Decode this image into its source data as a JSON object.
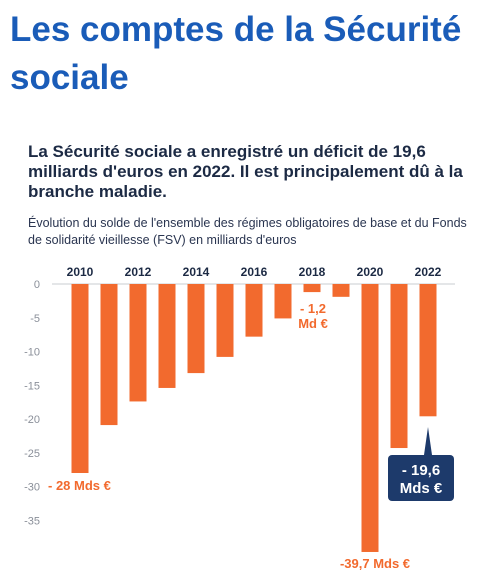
{
  "page": {
    "title": "Les comptes de la Sécurité sociale",
    "subtitle": "La Sécurité sociale a enregistré un déficit de 19,6 milliards d'euros en 2022. Il est principalement dû à la branche maladie.",
    "caption": "Évolution du solde de l'ensemble des régimes obligatoires de base et du Fonds de solidarité vieillesse (FSV) en milliards d'euros"
  },
  "chart_data": {
    "type": "bar",
    "categories": [
      "2010",
      "2011",
      "2012",
      "2013",
      "2014",
      "2015",
      "2016",
      "2017",
      "2018",
      "2019",
      "2020",
      "2021",
      "2022"
    ],
    "year_labels_shown": [
      "2010",
      "2012",
      "2014",
      "2016",
      "2018",
      "2020",
      "2022"
    ],
    "values": [
      -28,
      -20.9,
      -17.4,
      -15.4,
      -13.2,
      -10.8,
      -7.8,
      -5.1,
      -1.2,
      -1.9,
      -39.7,
      -24.3,
      -19.6
    ],
    "yticks": [
      0,
      -5,
      -10,
      -15,
      -20,
      -25,
      -30,
      -35
    ],
    "ylim": [
      -40,
      0
    ],
    "bar_color": "#f26a2e",
    "annotation_color": "#1d3a6b",
    "grid": false,
    "annotations": [
      {
        "category": "2010",
        "text": "- 28 Mds €"
      },
      {
        "category": "2018",
        "lines": [
          "- 1,2",
          "Md €"
        ]
      },
      {
        "category": "2020",
        "text": "-39,7 Mds €"
      },
      {
        "category": "2022",
        "lines": [
          "- 19,6",
          "Mds €"
        ]
      }
    ]
  }
}
